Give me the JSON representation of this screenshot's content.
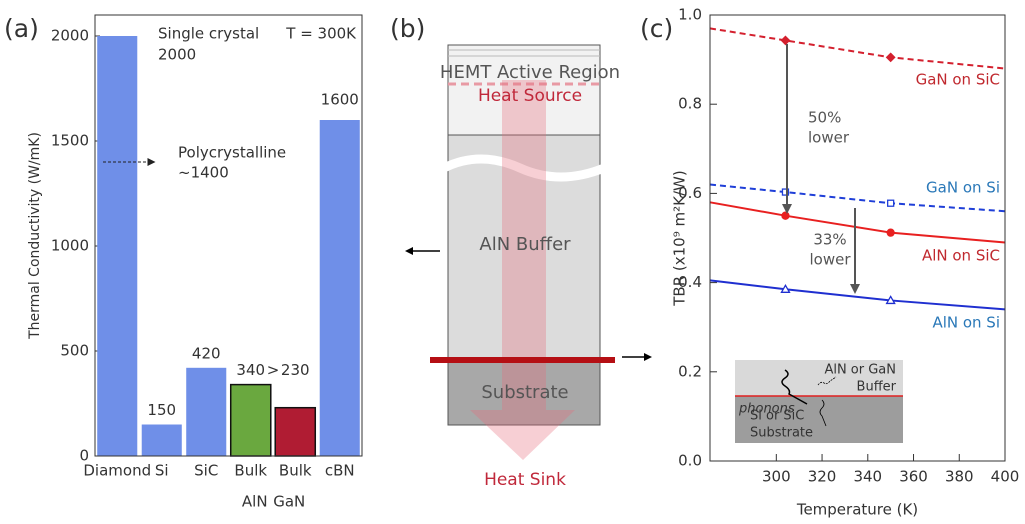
{
  "chart_data": [
    {
      "type": "bar",
      "panel_label": "(a)",
      "ylabel": "Thermal Conductivity (W/mK)",
      "categories": [
        "Diamond",
        "Si",
        "SiC",
        "Bulk",
        "Bulk",
        "cBN"
      ],
      "category_sublabels": [
        null,
        null,
        null,
        "AlN",
        "GaN",
        null
      ],
      "values": [
        2000,
        150,
        420,
        340,
        230,
        1600
      ],
      "colors": [
        "#6f8fe8",
        "#6f8fe8",
        "#6f8fe8",
        "#6aa83f",
        "#b01c33",
        "#6f8fe8"
      ],
      "outlined": [
        false,
        false,
        false,
        true,
        true,
        false
      ],
      "ylim": [
        0,
        2100
      ],
      "yticks": [
        0,
        500,
        1000,
        1500,
        2000
      ],
      "annotations": {
        "single": "Single crystal",
        "comparison": ">",
        "condition": "T = 300K"
      },
      "reference": {
        "name": "Polycrystalline",
        "value": 1400,
        "label": "~1400"
      }
    },
    {
      "type": "line",
      "panel_label": "(c)",
      "xlabel": "Temperature (K)",
      "ylabel": "TBR (x10⁹ m²K/W)",
      "xlim": [
        271,
        400
      ],
      "ylim": [
        0,
        1
      ],
      "xticks": [
        300,
        320,
        340,
        360,
        380,
        400
      ],
      "yticks": [
        {
          "value": 0,
          "label": "0.0"
        },
        0.2,
        0.4,
        0.6,
        0.8,
        {
          "value": 1,
          "label": "1.0"
        }
      ],
      "series": [
        {
          "name": "GaN on SiC",
          "color": "#d4202e",
          "dashed": true,
          "marker": "diamond",
          "filled": true,
          "x": [
            271,
            304,
            350,
            400
          ],
          "values": [
            0.97,
            0.943,
            0.905,
            0.88
          ],
          "marker_x": [
            304,
            350
          ],
          "marker_values": [
            0.943,
            0.905
          ]
        },
        {
          "name": "GaN on Si",
          "color": "#1f3fd8",
          "dashed": true,
          "marker": "square",
          "filled": false,
          "x": [
            271,
            304,
            350,
            400
          ],
          "values": [
            0.62,
            0.603,
            0.578,
            0.56
          ],
          "marker_x": [
            304,
            350
          ],
          "marker_values": [
            0.603,
            0.578
          ]
        },
        {
          "name": "AlN on SiC",
          "color": "#e82020",
          "dashed": false,
          "marker": "circle",
          "filled": true,
          "x": [
            271,
            304,
            350,
            400
          ],
          "values": [
            0.58,
            0.55,
            0.512,
            0.49
          ],
          "marker_x": [
            304,
            350
          ],
          "marker_values": [
            0.55,
            0.512
          ]
        },
        {
          "name": "AlN on Si",
          "color": "#1f2fd0",
          "dashed": false,
          "marker": "triangle",
          "filled": false,
          "x": [
            271,
            304,
            350,
            400
          ],
          "values": [
            0.405,
            0.385,
            0.36,
            0.34
          ],
          "marker_x": [
            304,
            350
          ],
          "marker_values": [
            0.385,
            0.36
          ]
        }
      ],
      "annotations": [
        {
          "text": [
            "50%",
            "lower"
          ]
        },
        {
          "text": [
            "33%",
            "lower"
          ]
        }
      ],
      "inset": {
        "buffer": [
          "AlN or GaN",
          "Buffer"
        ],
        "carrier": "phonons",
        "substrate": [
          "Si or SiC",
          "Substrate"
        ]
      }
    }
  ],
  "diagram": {
    "panel_label": "(b)",
    "active": "HEMT Active Region",
    "source": "Heat Source",
    "buffer": "AlN Buffer",
    "substrate": "Substrate",
    "sink": "Heat Sink"
  }
}
